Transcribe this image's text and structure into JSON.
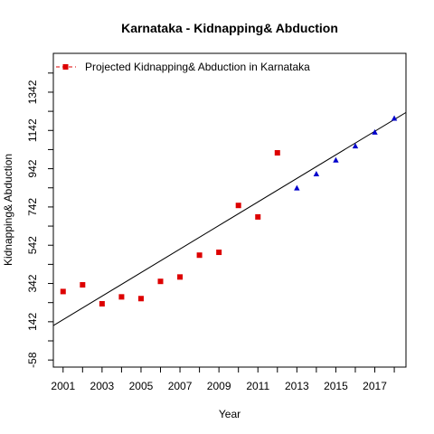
{
  "chart_data": {
    "type": "scatter",
    "title": "Karnataka  -  Kidnapping& Abduction",
    "xlabel": "Year",
    "ylabel": "Kidnapping& Abduction",
    "xlim": [
      2000.5,
      2018.6
    ],
    "ylim": [
      -95,
      1545
    ],
    "x_ticks": [
      2001,
      2003,
      2005,
      2007,
      2009,
      2011,
      2013,
      2015,
      2017
    ],
    "y_ticks": [
      -58,
      142,
      342,
      542,
      742,
      942,
      1142,
      1342
    ],
    "y_minor_ticks": [
      42,
      242,
      442,
      642,
      842,
      1042,
      1242,
      1442
    ],
    "legend": {
      "label": "Projected Kidnapping& Abduction  in  Karnataka",
      "position": "top-left"
    },
    "colors": {
      "actual": "#dd0000",
      "projected": "#0000cc",
      "trend": "#000000"
    },
    "series": [
      {
        "role": "actual",
        "marker": "square",
        "x": [
          2001,
          2002,
          2003,
          2004,
          2005,
          2006,
          2007,
          2008,
          2009,
          2010,
          2011,
          2012
        ],
        "values": [
          300,
          335,
          236,
          272,
          263,
          353,
          376,
          490,
          505,
          750,
          690,
          1025
        ]
      },
      {
        "role": "projected",
        "marker": "triangle",
        "x": [
          2013,
          2014,
          2015,
          2016,
          2017,
          2018
        ],
        "values": [
          840,
          914,
          986,
          1060,
          1132,
          1205
        ]
      }
    ],
    "trend_line": {
      "x": [
        2000.5,
        2018.6
      ],
      "y": [
        122,
        1236
      ]
    }
  }
}
